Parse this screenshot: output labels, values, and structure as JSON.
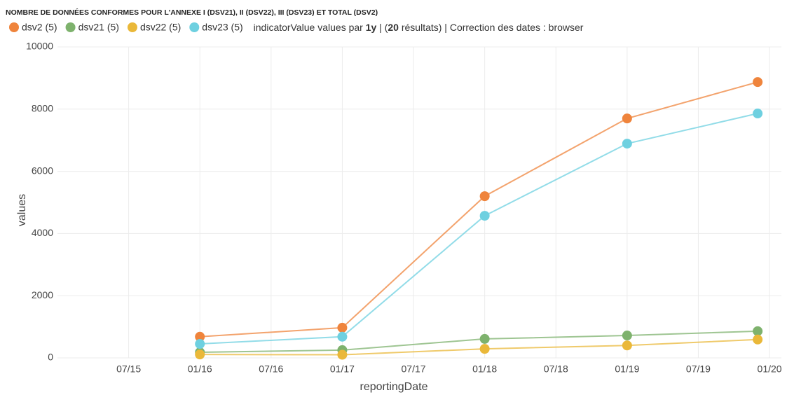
{
  "chart_data": {
    "type": "line",
    "title": "NOMBRE DE DONNÉES CONFORMES POUR L'ANNEXE I (DSV21), II (DSV22), III (DSV23) ET TOTAL (DSV2)",
    "subtitle_parts": [
      "indicatorValue values par ",
      "1y",
      " | (",
      "20",
      " résultats) | Correction des dates : browser"
    ],
    "subtitle_bold": [
      false,
      true,
      false,
      true,
      false
    ],
    "x_label": "reportingDate",
    "y_label": "values",
    "x": [
      "2016-01",
      "2017-01",
      "2018-01",
      "2019-01",
      "2019-12"
    ],
    "series": [
      {
        "name": "dsv2 (5)",
        "color": "#ef843c",
        "values": [
          680,
          970,
          5200,
          7700,
          8870
        ]
      },
      {
        "name": "dsv21 (5)",
        "color": "#7eb26d",
        "values": [
          180,
          250,
          610,
          720,
          860
        ]
      },
      {
        "name": "dsv22 (5)",
        "color": "#eab839",
        "values": [
          110,
          100,
          290,
          400,
          590
        ]
      },
      {
        "name": "dsv23 (5)",
        "color": "#6ed0e0",
        "values": [
          450,
          680,
          4570,
          6890,
          7860
        ]
      }
    ],
    "xlim": [
      "2015-01",
      "2020-02"
    ],
    "xticks": [
      {
        "value": "2015-07",
        "label": "07/15"
      },
      {
        "value": "2016-01",
        "label": "01/16"
      },
      {
        "value": "2016-07",
        "label": "07/16"
      },
      {
        "value": "2017-01",
        "label": "01/17"
      },
      {
        "value": "2017-07",
        "label": "07/17"
      },
      {
        "value": "2018-01",
        "label": "01/18"
      },
      {
        "value": "2018-07",
        "label": "07/18"
      },
      {
        "value": "2019-01",
        "label": "01/19"
      },
      {
        "value": "2019-07",
        "label": "07/19"
      },
      {
        "value": "2020-01",
        "label": "01/20"
      }
    ],
    "ylim": [
      0,
      10000
    ],
    "yticks": [
      0,
      2000,
      4000,
      6000,
      8000,
      10000
    ],
    "grid": true,
    "legend": "top-left"
  }
}
